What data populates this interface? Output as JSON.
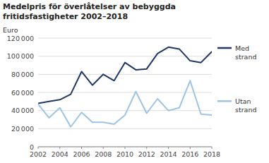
{
  "chart_data": {
    "type": "line",
    "title": "Medelpris för överlåtelser av bebyggda\nfritidsfastigheter 2002–2018",
    "ylabel": "Euro",
    "x": [
      2002,
      2003,
      2004,
      2005,
      2006,
      2007,
      2008,
      2009,
      2010,
      2011,
      2012,
      2013,
      2014,
      2015,
      2016,
      2017,
      2018
    ],
    "series": [
      {
        "name": "Med strand",
        "color": "#1F3864",
        "values": [
          48000,
          50000,
          52000,
          58000,
          83000,
          68000,
          80000,
          73000,
          93000,
          85000,
          86000,
          103000,
          110000,
          108000,
          95000,
          93000,
          105000
        ]
      },
      {
        "name": "Utan strand",
        "color": "#9DC3E6",
        "values": [
          47000,
          32000,
          43000,
          22000,
          38000,
          27000,
          27000,
          25000,
          35000,
          61000,
          37000,
          53000,
          40000,
          43000,
          73000,
          36000,
          35000
        ]
      }
    ],
    "xlim": [
      2002,
      2018
    ],
    "xticks": [
      2002,
      2004,
      2006,
      2008,
      2010,
      2012,
      2014,
      2016,
      2018
    ],
    "ylim": [
      0,
      120000
    ],
    "yticks": [
      0,
      {
        "value": 20000,
        "label": "20 000"
      },
      {
        "value": 40000,
        "label": "40 000"
      },
      {
        "value": 60000,
        "label": "60 000"
      },
      {
        "value": 80000,
        "label": "80 000"
      },
      {
        "value": 100000,
        "label": "100 000"
      },
      {
        "value": 120000,
        "label": "120 000"
      }
    ],
    "grid": true,
    "legend": "right"
  }
}
